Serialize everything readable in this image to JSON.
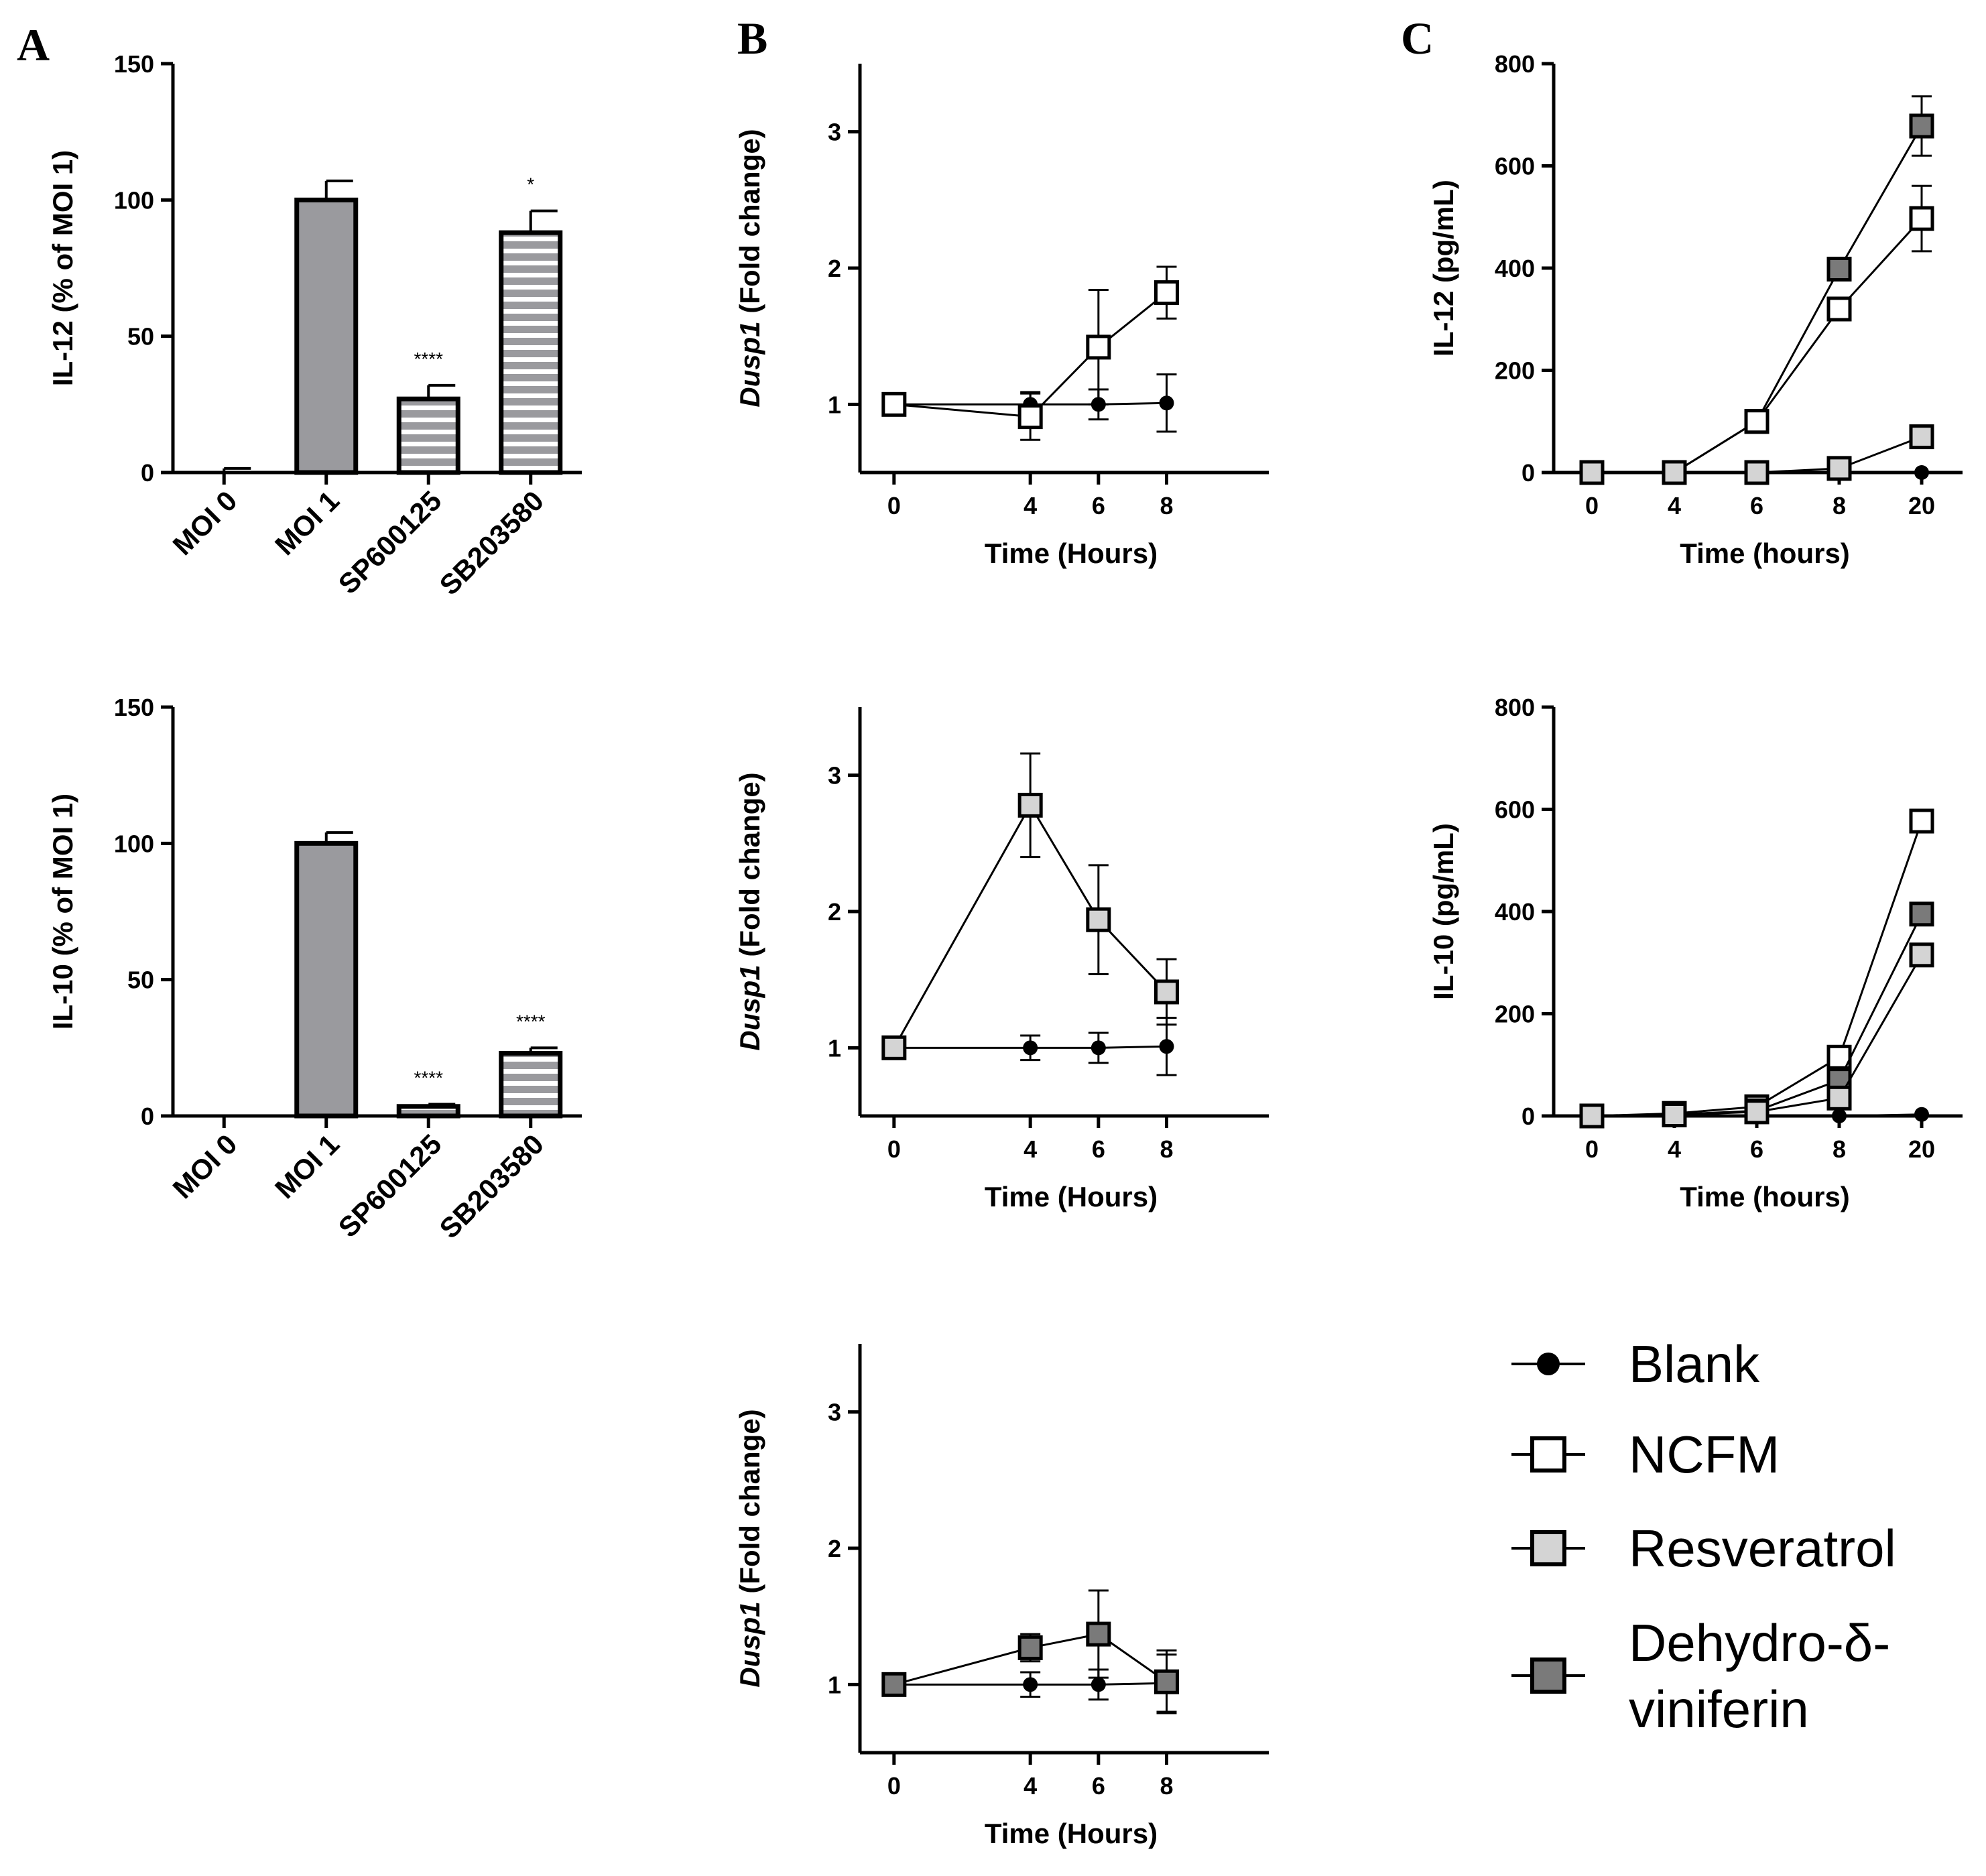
{
  "panel_letters": [
    "A",
    "B",
    "C"
  ],
  "colors": {
    "blank": "#000000",
    "ncfm": "#ffffff",
    "resveratrol": "#d4d4d4",
    "dehydro": "#7a7a7a",
    "bar_fill": "#9a9a9e"
  },
  "legend": {
    "items": [
      {
        "key": "blank",
        "label": "Blank",
        "marker": "circle"
      },
      {
        "key": "ncfm",
        "label": "NCFM",
        "marker": "square"
      },
      {
        "key": "resveratrol",
        "label": "Resveratrol",
        "marker": "square"
      },
      {
        "key": "dehydro",
        "label": "Dehydro-δ-",
        "label2": "viniferin",
        "marker": "square"
      }
    ]
  },
  "chart_data": [
    {
      "id": "A1",
      "type": "bar",
      "panel": "A",
      "ylabel": "IL-12 (% of MOI 1)",
      "ylim": [
        0,
        150
      ],
      "yticks": [
        0,
        50,
        100,
        150
      ],
      "categories": [
        "MOI 0",
        "MOI 1",
        "SP600125",
        "SB203580"
      ],
      "values": [
        0,
        100,
        27,
        88
      ],
      "errors": [
        1.5,
        7,
        5,
        8
      ],
      "patterns": [
        "solid",
        "solid",
        "striped",
        "striped"
      ],
      "annotations": [
        "",
        "",
        "****",
        "*"
      ]
    },
    {
      "id": "A2",
      "type": "bar",
      "panel": "A",
      "ylabel": "IL-10 (% of MOI 1)",
      "ylim": [
        0,
        150
      ],
      "yticks": [
        0,
        50,
        100,
        150
      ],
      "categories": [
        "MOI 0",
        "MOI 1",
        "SP600125",
        "SB203580"
      ],
      "values": [
        0,
        100,
        3.5,
        23
      ],
      "errors": [
        0,
        4,
        0.8,
        2
      ],
      "patterns": [
        "solid",
        "solid",
        "striped",
        "striped"
      ],
      "annotations": [
        "",
        "",
        "****",
        "****"
      ]
    },
    {
      "id": "B1",
      "type": "line",
      "panel": "B",
      "ylabel_italic": "Dusp1",
      "ylabel_rest": " (Fold change)",
      "xlabel": "Time (Hours)",
      "x": [
        0,
        4,
        6,
        8
      ],
      "ylim": [
        0.5,
        3.5
      ],
      "yticks": [
        1,
        2,
        3
      ],
      "series": [
        {
          "name": "NCFM",
          "key": "ncfm",
          "values": [
            1.0,
            0.91,
            1.42,
            1.82
          ],
          "errors": [
            0.03,
            0.17,
            0.42,
            0.19
          ]
        },
        {
          "name": "Blank",
          "key": "blank",
          "values": [
            1.0,
            1.0,
            1.0,
            1.01
          ],
          "errors": [
            0.02,
            0.09,
            0.11,
            0.21
          ]
        }
      ]
    },
    {
      "id": "B2",
      "type": "line",
      "panel": "B",
      "ylabel_italic": "Dusp1",
      "ylabel_rest": " (Fold change)",
      "xlabel": "Time (Hours)",
      "x": [
        0,
        4,
        6,
        8
      ],
      "ylim": [
        0.5,
        3.5
      ],
      "yticks": [
        1,
        2,
        3
      ],
      "series": [
        {
          "name": "Resveratrol",
          "key": "resveratrol",
          "values": [
            1.0,
            2.78,
            1.94,
            1.41
          ],
          "errors": [
            0.03,
            0.38,
            0.4,
            0.24
          ]
        },
        {
          "name": "Blank",
          "key": "blank",
          "values": [
            1.0,
            1.0,
            1.0,
            1.01
          ],
          "errors": [
            0.02,
            0.09,
            0.11,
            0.21
          ]
        }
      ]
    },
    {
      "id": "B3",
      "type": "line",
      "panel": "B",
      "ylabel_italic": "Dusp1",
      "ylabel_rest": " (Fold change)",
      "xlabel": "Time (Hours)",
      "x": [
        0,
        4,
        6,
        8
      ],
      "ylim": [
        0.5,
        3.5
      ],
      "yticks": [
        1,
        2,
        3
      ],
      "series": [
        {
          "name": "Dehydro-δ-viniferin",
          "key": "dehydro",
          "values": [
            1.0,
            1.27,
            1.37,
            1.02
          ],
          "errors": [
            0.03,
            0.1,
            0.32,
            0.23
          ]
        },
        {
          "name": "Blank",
          "key": "blank",
          "values": [
            1.0,
            1.0,
            1.0,
            1.01
          ],
          "errors": [
            0.02,
            0.09,
            0.11,
            0.21
          ]
        }
      ]
    },
    {
      "id": "C1",
      "type": "line",
      "panel": "C",
      "ylabel": "IL-12 (pg/mL)",
      "xlabel": "Time (hours)",
      "x": [
        "0",
        "4",
        "6",
        "8",
        "20"
      ],
      "ylim": [
        0,
        800
      ],
      "yticks": [
        0,
        200,
        400,
        600,
        800
      ],
      "series": [
        {
          "name": "Dehydro-δ-viniferin",
          "key": "dehydro",
          "values": [
            0,
            0,
            100,
            398,
            678
          ],
          "errors": [
            0,
            0,
            0,
            0,
            58
          ]
        },
        {
          "name": "NCFM",
          "key": "ncfm",
          "values": [
            0,
            0,
            100,
            320,
            497
          ],
          "errors": [
            0,
            0,
            0,
            0,
            64
          ]
        },
        {
          "name": "Resveratrol",
          "key": "resveratrol",
          "values": [
            0,
            0,
            0,
            8,
            70
          ],
          "errors": [
            0,
            0,
            0,
            0,
            0
          ]
        },
        {
          "name": "Blank",
          "key": "blank",
          "values": [
            0,
            0,
            0,
            0,
            0
          ],
          "errors": [
            0,
            0,
            0,
            0,
            0
          ]
        }
      ]
    },
    {
      "id": "C2",
      "type": "line",
      "panel": "C",
      "ylabel": "IL-10 (pg/mL)",
      "xlabel": "Time (hours)",
      "x": [
        "0",
        "4",
        "6",
        "8",
        "20"
      ],
      "ylim": [
        0,
        800
      ],
      "yticks": [
        0,
        200,
        400,
        600,
        800
      ],
      "series": [
        {
          "name": "NCFM",
          "key": "ncfm",
          "values": [
            0,
            5,
            18,
            115,
            577
          ],
          "errors": [
            0,
            0,
            0,
            0,
            12
          ]
        },
        {
          "name": "Dehydro-δ-viniferin",
          "key": "dehydro",
          "values": [
            0,
            3,
            10,
            70,
            395
          ],
          "errors": [
            0,
            0,
            0,
            0,
            0
          ]
        },
        {
          "name": "Resveratrol",
          "key": "resveratrol",
          "values": [
            0,
            2,
            8,
            35,
            315
          ],
          "errors": [
            0,
            0,
            0,
            0,
            10
          ]
        },
        {
          "name": "Blank",
          "key": "blank",
          "values": [
            0,
            0,
            0,
            0,
            3
          ],
          "errors": [
            0,
            0,
            0,
            0,
            0
          ]
        }
      ]
    }
  ]
}
